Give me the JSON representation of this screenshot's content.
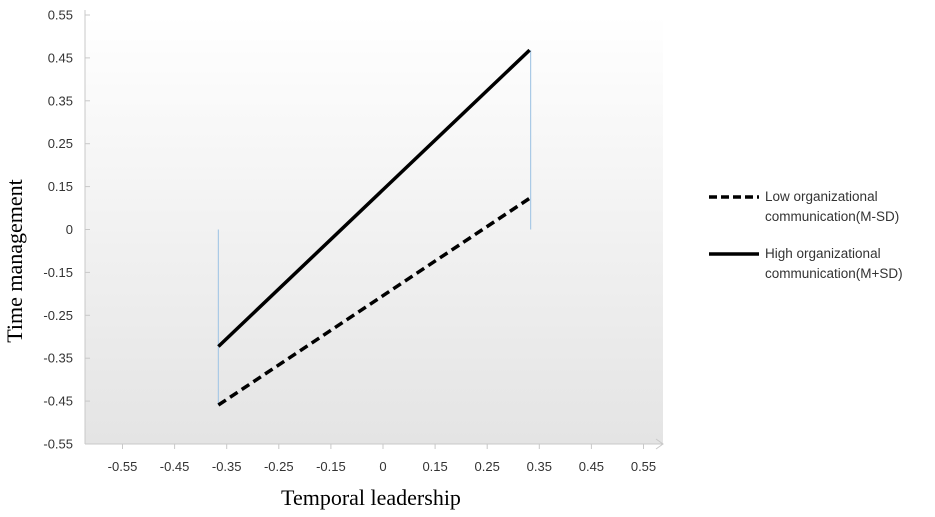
{
  "chart_data": {
    "type": "line",
    "xlabel": "Temporal leadership",
    "ylabel": "Time management",
    "xlim": [
      -0.65,
      0.65
    ],
    "ylim": [
      -0.55,
      0.55
    ],
    "x_ticks": [
      "-0.55",
      "-0.45",
      "-0.35",
      "-0.25",
      "-0.15",
      "0",
      "0.15",
      "0.25",
      "0.35",
      "0.45",
      "0.55"
    ],
    "y_ticks": [
      "0.55",
      "0.45",
      "0.35",
      "0.25",
      "0.15",
      "0",
      "-0.15",
      "-0.25",
      "-0.35",
      "-0.45",
      "-0.55"
    ],
    "legend_position": "right",
    "grid": false,
    "series": [
      {
        "name": "Low organizational communication(M-SD)",
        "name_lines": [
          "Low organizational",
          "communication(M-SD)"
        ],
        "style": "dashed",
        "color": "#000000",
        "x": [
          -0.35,
          0.35
        ],
        "y": [
          -0.45,
          0.08
        ]
      },
      {
        "name": "High organizational communication(M+SD)",
        "name_lines": [
          "High organizational",
          "communication(M+SD)"
        ],
        "style": "solid",
        "color": "#000000",
        "x": [
          -0.35,
          0.35
        ],
        "y": [
          -0.3,
          0.46
        ]
      }
    ]
  }
}
